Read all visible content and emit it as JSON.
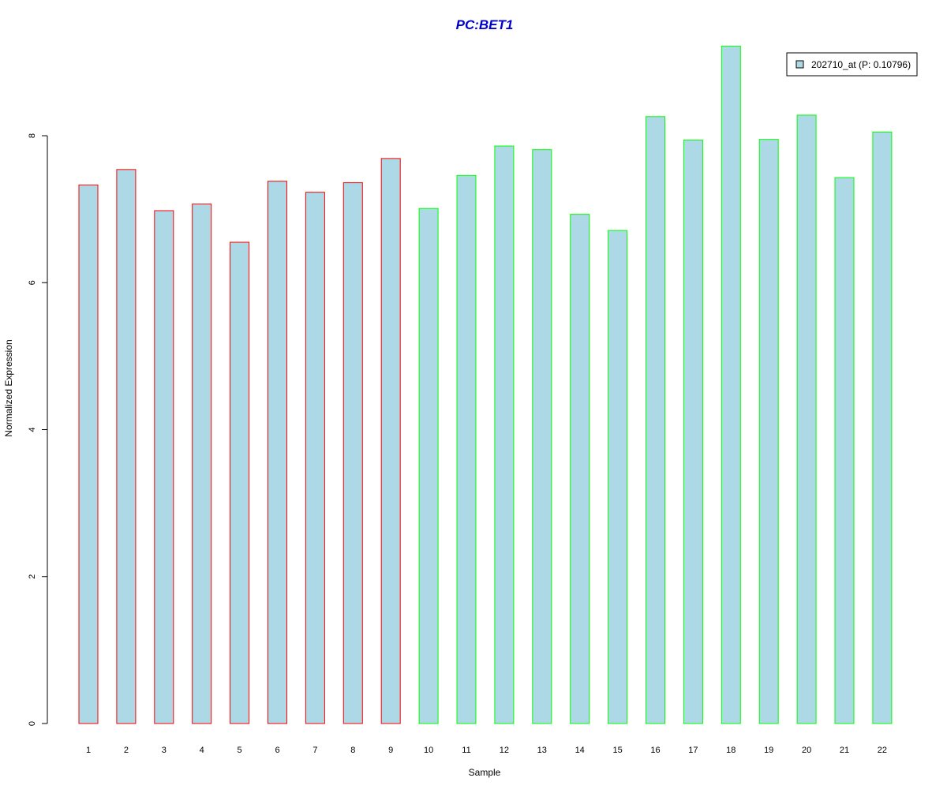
{
  "chart_data": {
    "type": "bar",
    "title": "PC:BET1",
    "xlabel": "Sample",
    "ylabel": "Normalized Expression",
    "categories": [
      "1",
      "2",
      "3",
      "4",
      "5",
      "6",
      "7",
      "8",
      "9",
      "10",
      "11",
      "12",
      "13",
      "14",
      "15",
      "16",
      "17",
      "18",
      "19",
      "20",
      "21",
      "22"
    ],
    "values": [
      7.33,
      7.54,
      6.98,
      7.07,
      6.55,
      7.38,
      7.23,
      7.36,
      7.69,
      7.01,
      7.46,
      7.86,
      7.81,
      6.93,
      6.71,
      8.26,
      7.94,
      9.22,
      7.95,
      8.28,
      7.43,
      8.05
    ],
    "groups": [
      1,
      1,
      1,
      1,
      1,
      1,
      1,
      1,
      1,
      2,
      2,
      2,
      2,
      2,
      2,
      2,
      2,
      2,
      2,
      2,
      2,
      2
    ],
    "yticks": [
      0,
      2,
      4,
      6,
      8
    ],
    "ylim": [
      0,
      9.22
    ],
    "grid": false,
    "legend": {
      "position": "top-right",
      "entries": [
        "202710_at (P: 0.10796)"
      ]
    },
    "colors": {
      "fill": "#add8e6",
      "group1_border": "#ff0000",
      "group2_border": "#00ff00",
      "title": "#0000cd"
    }
  }
}
